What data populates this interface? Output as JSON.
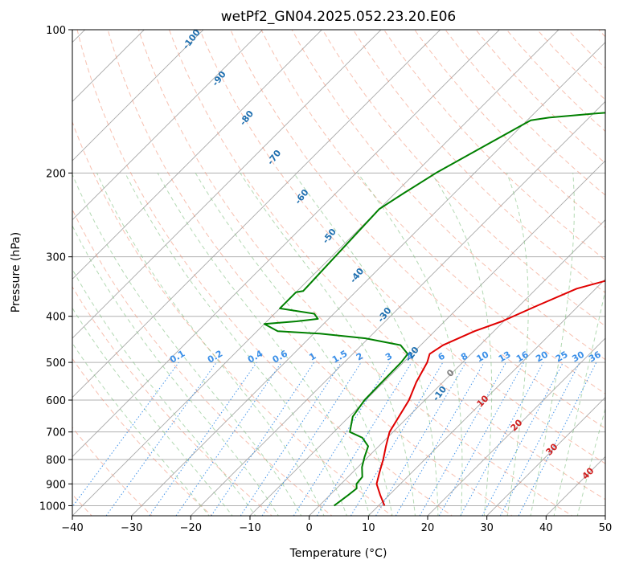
{
  "chart_data": {
    "type": "line",
    "title": "wetPf2_GN04.2025.052.23.20.E06",
    "xlabel": "Temperature (°C)",
    "ylabel": "Pressure (hPa)",
    "xlim": [
      -40,
      50
    ],
    "ylim": [
      1050,
      100
    ],
    "y_scale": "log",
    "grid": true,
    "x_ticks": [
      -40,
      -30,
      -20,
      -10,
      0,
      10,
      20,
      30,
      40,
      50
    ],
    "x_tick_labels": [
      "−40",
      "−30",
      "−20",
      "−10",
      "0",
      "10",
      "20",
      "30",
      "40",
      "50"
    ],
    "y_ticks": [
      100,
      200,
      300,
      400,
      500,
      600,
      700,
      800,
      900,
      1000
    ],
    "y_tick_labels": [
      "100",
      "200",
      "300",
      "400",
      "500",
      "600",
      "700",
      "800",
      "900",
      "1000"
    ],
    "series": [
      {
        "color": "#e00000",
        "role": "temperature",
        "points": [
          [
            11,
            1000
          ],
          [
            8.5,
            950
          ],
          [
            6,
            900
          ],
          [
            4.5,
            850
          ],
          [
            3,
            800
          ],
          [
            1.2,
            750
          ],
          [
            -0.6,
            700
          ],
          [
            -2.7,
            600
          ],
          [
            -4.5,
            550
          ],
          [
            -6,
            500
          ],
          [
            -7,
            480
          ],
          [
            -6.2,
            460
          ],
          [
            -3.3,
            430
          ],
          [
            -0.3,
            410
          ],
          [
            3,
            380
          ],
          [
            6.8,
            350
          ],
          [
            12.3,
            330
          ],
          [
            14.8,
            310
          ],
          [
            15.6,
            300
          ],
          [
            16.5,
            285
          ],
          [
            17.8,
            270
          ],
          [
            20.7,
            260
          ],
          [
            22.1,
            240
          ],
          [
            22.4,
            220
          ],
          [
            21.3,
            200
          ],
          [
            20.2,
            180
          ],
          [
            20.6,
            165
          ],
          [
            21.8,
            150
          ],
          [
            20.7,
            140
          ],
          [
            19.4,
            130
          ],
          [
            20.6,
            122
          ],
          [
            22.9,
            118
          ],
          [
            24.7,
            115
          ],
          [
            26.6,
            110
          ],
          [
            27.4,
            105
          ],
          [
            27.3,
            100
          ]
        ]
      },
      {
        "color": "#008000",
        "role": "dewpoint",
        "points": [
          [
            2.5,
            1000
          ],
          [
            3.1,
            950
          ],
          [
            3.4,
            920
          ],
          [
            2.6,
            900
          ],
          [
            2.4,
            870
          ],
          [
            0.7,
            830
          ],
          [
            -0.6,
            790
          ],
          [
            -1.8,
            750
          ],
          [
            -4.2,
            720
          ],
          [
            -7.3,
            700
          ],
          [
            -9.4,
            650
          ],
          [
            -10.2,
            600
          ],
          [
            -10.3,
            560
          ],
          [
            -10.4,
            500
          ],
          [
            -10.7,
            480
          ],
          [
            -13.4,
            460
          ],
          [
            -20.5,
            445
          ],
          [
            -29,
            435
          ],
          [
            -36.5,
            430
          ],
          [
            -40,
            415
          ],
          [
            -35,
            410
          ],
          [
            -31.8,
            405
          ],
          [
            -33.3,
            395
          ],
          [
            -40,
            385
          ],
          [
            -40,
            356
          ],
          [
            -39,
            354
          ],
          [
            -40,
            238
          ],
          [
            -38.5,
            220
          ],
          [
            -36.5,
            200
          ],
          [
            -33.6,
            180
          ],
          [
            -30.3,
            160
          ],
          [
            -29.4,
            155
          ],
          [
            -26.8,
            153
          ],
          [
            -19.6,
            150
          ],
          [
            -14.3,
            148
          ],
          [
            -11.5,
            145
          ],
          [
            -9.3,
            140
          ],
          [
            -7.7,
            132
          ],
          [
            -7.3,
            120
          ],
          [
            -7.3,
            115
          ],
          [
            -6,
            110
          ],
          [
            -1.6,
            105
          ],
          [
            -0.9,
            100
          ]
        ]
      }
    ],
    "dry_adiabat_labels": [
      "-100",
      "-90",
      "-80",
      "-70",
      "-60",
      "-50",
      "-40",
      "-30",
      "-20",
      "-10"
    ],
    "mixing_ratio_labels": [
      "0.1",
      "0.2",
      "0.4",
      "0.6",
      "1",
      "1.5",
      "2",
      "3",
      "4",
      "6",
      "8",
      "10",
      "13",
      "16",
      "20",
      "25",
      "30",
      "36"
    ],
    "moist_adiabat_labels": [
      "0",
      "10",
      "20",
      "30",
      "40"
    ],
    "colors": {
      "temperature": "#e00000",
      "dewpoint": "#008000",
      "isotherm": "#9a9a9a",
      "dry_adiabat": "#f08c70",
      "moist_adiabat": "#80c080",
      "mixing_ratio": "#3a8fe8",
      "dry_label": "#2070b0",
      "moist_label": "#d02020",
      "zero_label": "#808080"
    }
  }
}
